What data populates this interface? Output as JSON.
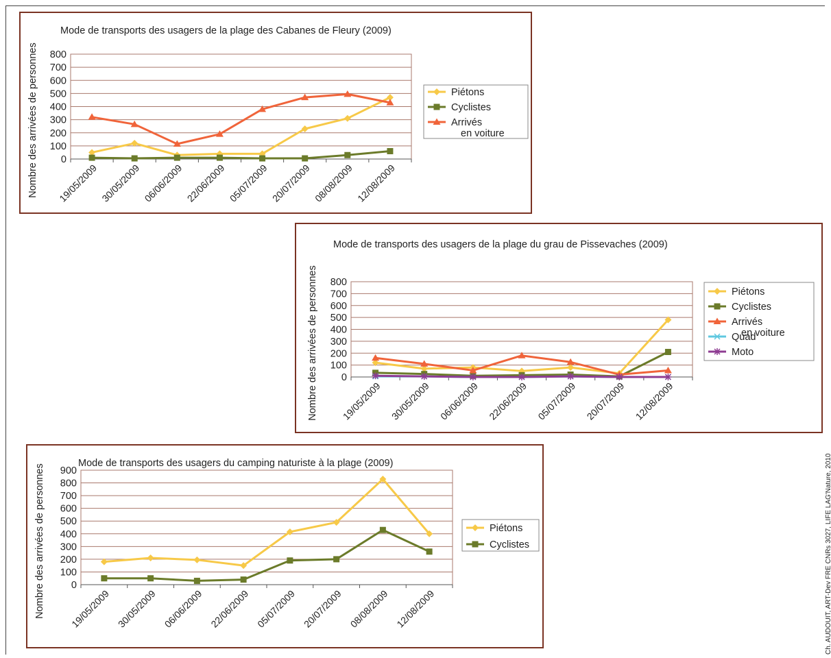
{
  "credit": "Ch. AUDOUIT, ART-Dev FRE CNRs 3027, LIFE LAG'Nature, 2010",
  "chart_data": [
    {
      "type": "line",
      "title": "Mode de transports des usagers de la plage des Cabanes de Fleury (2009)",
      "ylabel": "Nombre des arrivées de personnes",
      "xlabel": "",
      "categories": [
        "19/05/2009",
        "30/05/2009",
        "06/06/2009",
        "22/06/2009",
        "05/07/2009",
        "20/07/2009",
        "08/08/2009",
        "12/08/2009"
      ],
      "ylim": [
        0,
        800
      ],
      "yticks": [
        "800",
        "700",
        "600",
        "500",
        "400",
        "300",
        "200",
        "100",
        "0"
      ],
      "grid": true,
      "legend_placement": "right",
      "series": [
        {
          "name": "Piétons",
          "color": "#f7c948",
          "marker": "diamond",
          "values": [
            50,
            120,
            30,
            40,
            40,
            230,
            310,
            470
          ]
        },
        {
          "name": "Cyclistes",
          "color": "#6b7b2a",
          "marker": "square",
          "values": [
            10,
            5,
            10,
            10,
            5,
            5,
            30,
            60
          ]
        },
        {
          "name": "Arrivés en voiture",
          "legend_lines": [
            "Arrivés",
            "en voiture"
          ],
          "color": "#f0643a",
          "marker": "triangle",
          "values": [
            320,
            265,
            115,
            190,
            380,
            470,
            495,
            430
          ]
        }
      ]
    },
    {
      "type": "line",
      "title": "Mode de transports des usagers de la plage du grau de Pissevaches (2009)",
      "ylabel": "Nombre des arrivées de personnes",
      "xlabel": "",
      "categories": [
        "19/05/2009",
        "30/05/2009",
        "06/06/2009",
        "22/06/2009",
        "05/07/2009",
        "20/07/2009",
        "12/08/2009"
      ],
      "ylim": [
        0,
        800
      ],
      "yticks": [
        "800",
        "700",
        "600",
        "500",
        "400",
        "300",
        "200",
        "100",
        "0"
      ],
      "grid": true,
      "legend_placement": "right",
      "series": [
        {
          "name": "Piétons",
          "color": "#f7c948",
          "marker": "diamond",
          "values": [
            120,
            70,
            80,
            50,
            80,
            30,
            480
          ]
        },
        {
          "name": "Cyclistes",
          "color": "#6b7b2a",
          "marker": "square",
          "values": [
            35,
            25,
            10,
            15,
            20,
            5,
            210
          ]
        },
        {
          "name": "Arrivés en voiture",
          "legend_lines": [
            "Arrivés",
            "en voiture"
          ],
          "color": "#f0643a",
          "marker": "triangle",
          "values": [
            160,
            110,
            55,
            180,
            125,
            20,
            55
          ]
        },
        {
          "name": "Quad",
          "color": "#5fc8e0",
          "marker": "cross",
          "values": [
            5,
            5,
            0,
            0,
            5,
            0,
            0
          ]
        },
        {
          "name": "Moto",
          "color": "#8e3c92",
          "marker": "star",
          "values": [
            10,
            5,
            0,
            0,
            5,
            0,
            0
          ]
        }
      ]
    },
    {
      "type": "line",
      "title": "Mode de transports des usagers du camping naturiste à la plage (2009)",
      "ylabel": "Nombre des arrivées de personnes",
      "xlabel": "",
      "categories": [
        "19/05/2009",
        "30/05/2009",
        "06/06/2009",
        "22/06/2009",
        "05/07/2009",
        "20/07/2009",
        "08/08/2009",
        "12/08/2009"
      ],
      "ylim": [
        0,
        900
      ],
      "yticks": [
        "900",
        "800",
        "700",
        "600",
        "500",
        "400",
        "300",
        "200",
        "100",
        "0"
      ],
      "grid": true,
      "legend_placement": "right",
      "series": [
        {
          "name": "Piétons",
          "color": "#f7c948",
          "marker": "diamond",
          "values": [
            180,
            210,
            195,
            150,
            415,
            490,
            830,
            400
          ]
        },
        {
          "name": "Cyclistes",
          "color": "#6b7b2a",
          "marker": "square",
          "values": [
            50,
            50,
            30,
            40,
            190,
            200,
            430,
            260
          ]
        }
      ]
    }
  ]
}
